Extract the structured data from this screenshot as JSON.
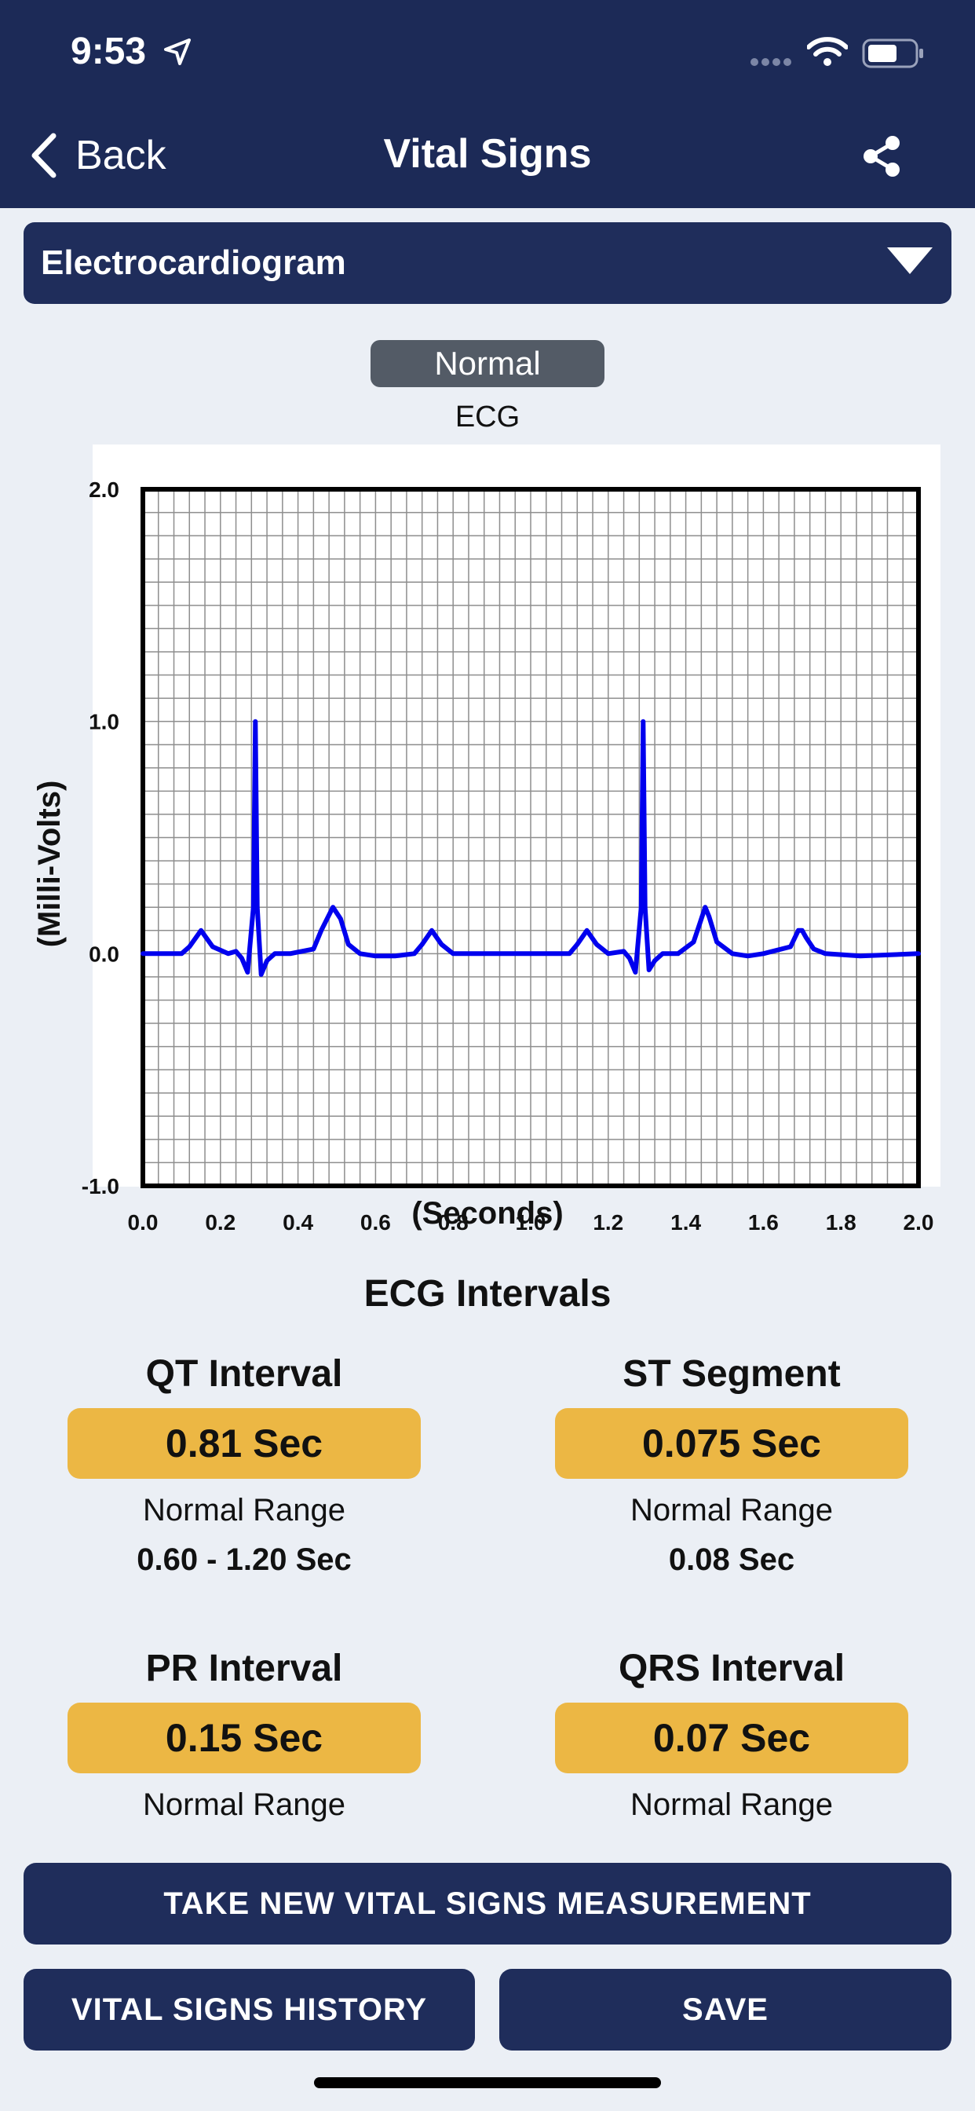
{
  "status_bar": {
    "time": "9:53"
  },
  "nav": {
    "back_label": "Back",
    "title": "Vital Signs"
  },
  "dropdown": {
    "selected": "Electrocardiogram"
  },
  "badge": {
    "label": "Normal"
  },
  "chart_caption": "ECG",
  "chart_data": {
    "type": "line",
    "title": "ECG",
    "xlabel": "(Seconds)",
    "ylabel": "(Milli-Volts)",
    "xlim": [
      0.0,
      2.0
    ],
    "ylim": [
      -1.0,
      2.0
    ],
    "x_ticks": [
      "0.0",
      "0.2",
      "0.4",
      "0.6",
      "0.8",
      "1.0",
      "1.2",
      "1.4",
      "1.6",
      "1.8",
      "2.0"
    ],
    "y_ticks": [
      "2.0",
      "1.0",
      "0.0",
      "-1.0"
    ],
    "grid": true,
    "series": [
      {
        "name": "ECG",
        "color": "#0000ee",
        "x": [
          0.0,
          0.1,
          0.12,
          0.15,
          0.18,
          0.22,
          0.24,
          0.255,
          0.27,
          0.285,
          0.29,
          0.295,
          0.305,
          0.32,
          0.34,
          0.38,
          0.44,
          0.46,
          0.49,
          0.51,
          0.53,
          0.56,
          0.6,
          0.65,
          0.7,
          0.72,
          0.745,
          0.77,
          0.8,
          0.85,
          0.95,
          1.05,
          1.1,
          1.12,
          1.145,
          1.17,
          1.2,
          1.24,
          1.255,
          1.27,
          1.285,
          1.29,
          1.295,
          1.305,
          1.32,
          1.34,
          1.38,
          1.42,
          1.44,
          1.45,
          1.46,
          1.48,
          1.52,
          1.56,
          1.6,
          1.67,
          1.69,
          1.7,
          1.71,
          1.73,
          1.76,
          1.85,
          2.0
        ],
        "y": [
          0.0,
          0.0,
          0.03,
          0.1,
          0.03,
          0.0,
          0.01,
          -0.02,
          -0.08,
          0.2,
          1.0,
          0.2,
          -0.09,
          -0.03,
          0.0,
          0.0,
          0.02,
          0.1,
          0.2,
          0.15,
          0.04,
          0.0,
          -0.01,
          -0.01,
          0.0,
          0.04,
          0.1,
          0.04,
          0.0,
          0.0,
          0.0,
          0.0,
          0.0,
          0.04,
          0.1,
          0.04,
          0.0,
          0.01,
          -0.02,
          -0.08,
          0.2,
          1.0,
          0.2,
          -0.07,
          -0.03,
          0.0,
          0.0,
          0.05,
          0.15,
          0.2,
          0.16,
          0.05,
          0.0,
          -0.01,
          0.0,
          0.03,
          0.1,
          0.1,
          0.07,
          0.02,
          0.0,
          -0.01,
          0.0
        ]
      }
    ]
  },
  "intervals_title": "ECG Intervals",
  "intervals": [
    {
      "name": "QT Interval",
      "value": "0.81 Sec",
      "range_label": "Normal Range",
      "range_value": "0.60 - 1.20 Sec"
    },
    {
      "name": "ST Segment",
      "value": "0.075 Sec",
      "range_label": "Normal Range",
      "range_value": "0.08 Sec"
    },
    {
      "name": "PR Interval",
      "value": "0.15 Sec",
      "range_label": "Normal Range"
    },
    {
      "name": "QRS Interval",
      "value": "0.07 Sec",
      "range_label": "Normal Range"
    }
  ],
  "buttons": {
    "take_new": "TAKE NEW VITAL SIGNS MEASUREMENT",
    "history": "VITAL SIGNS HISTORY",
    "save": "SAVE"
  },
  "colors": {
    "nav_bg": "#1c2a57",
    "button_bg": "#1f2d5b",
    "value_bg": "#ecb744",
    "page_bg": "#ebeff5",
    "trace": "#0000ee"
  }
}
